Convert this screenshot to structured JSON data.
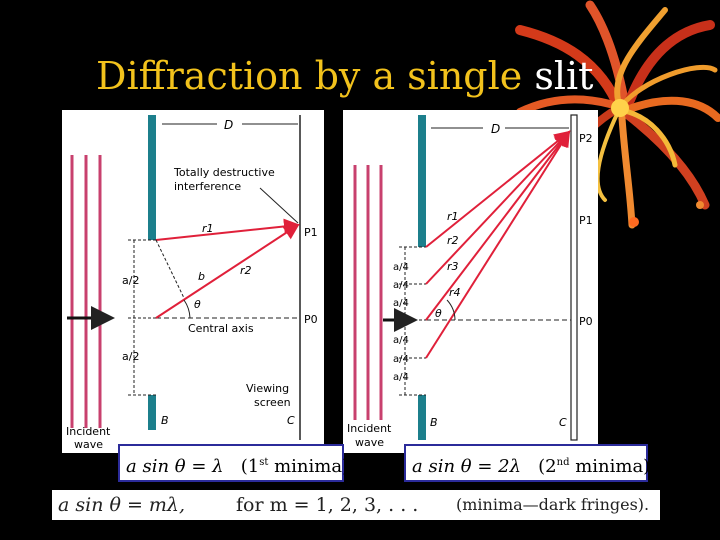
{
  "title": {
    "part1": "Diffraction by a single ",
    "part2": "slit"
  },
  "left_figure": {
    "D": "D",
    "destructive_line1": "Totally destructive",
    "destructive_line2": "interference",
    "r1": "r1",
    "r2": "r2",
    "b": "b",
    "theta": "θ",
    "P1": "P1",
    "P0": "P0",
    "a_half_top": "a/2",
    "a_half_bottom": "a/2",
    "central_axis": "Central axis",
    "viewing1": "Viewing",
    "viewing2": "screen",
    "B": "B",
    "C": "C",
    "incident1": "Incident",
    "incident2": "wave"
  },
  "right_figure": {
    "D": "D",
    "P2": "P2",
    "P1": "P1",
    "P0": "P0",
    "r1": "r1",
    "r2": "r2",
    "r3": "r3",
    "r4": "r4",
    "theta": "θ",
    "a_quarter": [
      "a/4",
      "a/4",
      "a/4",
      "a/4",
      "a/4",
      "a/4"
    ],
    "B": "B",
    "C": "C",
    "incident1": "Incident",
    "incident2": "wave"
  },
  "equations": {
    "left": {
      "formula": "a sin θ = λ",
      "order": "(1",
      "sup": "st",
      "rest": " minima)"
    },
    "right": {
      "formula": "a sin θ = 2λ",
      "order": "(2",
      "sup": "nd",
      "rest": " minima)"
    }
  },
  "bottom_bar": {
    "formula": "a sin θ = mλ,",
    "condition": "for m = 1, 2, 3, . . .",
    "note": "(minima—dark fringes)."
  },
  "colors": {
    "title_yellow": "#f2c21c",
    "slit_teal": "#1c7f8c",
    "ray_red": "#e0203a",
    "wave_pink": "#c8406e"
  }
}
